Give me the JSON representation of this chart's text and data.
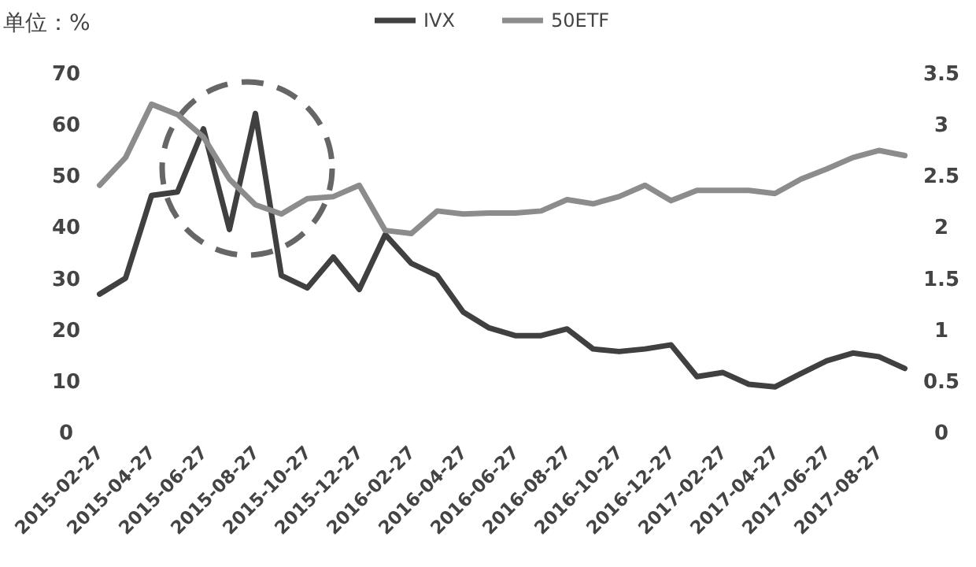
{
  "chart_data": {
    "type": "line",
    "ylabel": "单位：%",
    "legend": "top",
    "categories": [
      "2015-02-27",
      null,
      "2015-04-27",
      null,
      "2015-06-27",
      null,
      "2015-08-27",
      null,
      "2015-10-27",
      null,
      "2015-12-27",
      null,
      "2016-02-27",
      null,
      "2016-04-27",
      null,
      "2016-06-27",
      null,
      "2016-08-27",
      null,
      "2016-10-27",
      null,
      "2016-12-27",
      null,
      "2017-02-27",
      null,
      "2017-04-27",
      null,
      "2017-06-27",
      null,
      "2017-08-27",
      null
    ],
    "series": [
      {
        "name": "IVX",
        "color": "#404040",
        "values": [
          26.8,
          29.9,
          46,
          46.7,
          59,
          39.4,
          62,
          30.4,
          28,
          34,
          27.7,
          38.4,
          32.8,
          30.4,
          23.3,
          20.2,
          18.7,
          18.7,
          20,
          16.1,
          15.6,
          16.1,
          16.9,
          10.7,
          11.5,
          9.2,
          8.7,
          11.3,
          13.8,
          15.3,
          14.6,
          12.3
        ]
      },
      {
        "name": "50ETF",
        "color": "#8c8c8c",
        "axis": "y2",
        "values": [
          2.4,
          2.67,
          3.19,
          3.09,
          2.87,
          2.46,
          2.21,
          2.12,
          2.27,
          2.29,
          2.4,
          1.96,
          1.93,
          2.15,
          2.12,
          2.13,
          2.13,
          2.15,
          2.26,
          2.22,
          2.29,
          2.4,
          2.25,
          2.35,
          2.35,
          2.35,
          2.32,
          2.46,
          2.56,
          2.67,
          2.74,
          2.69
        ]
      }
    ],
    "ylim": [
      0,
      70
    ],
    "yticks": [
      0,
      10,
      20,
      30,
      40,
      50,
      60,
      70
    ],
    "y2lim": [
      0,
      3.5
    ],
    "y2ticks": [
      0,
      0.5,
      1,
      1.5,
      2,
      2.5,
      3,
      3.5
    ]
  }
}
